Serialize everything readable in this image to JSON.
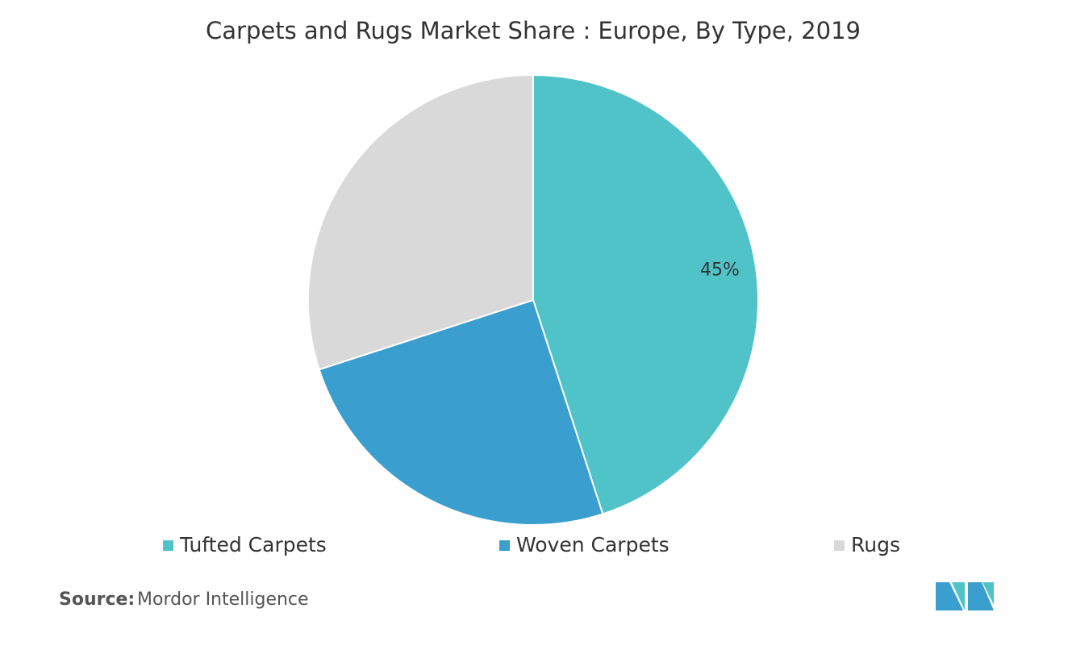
{
  "chart_data": {
    "type": "pie",
    "title": "Carpets and Rugs Market Share : Europe, By Type, 2019",
    "categories": [
      "Tufted Carpets",
      "Woven Carpets",
      "Rugs"
    ],
    "values": [
      45,
      25,
      30
    ],
    "value_labels": [
      "45%",
      null,
      null
    ],
    "colors": [
      "#4fc3c8",
      "#3a9fce",
      "#d9d9d9"
    ],
    "legend": "bottom",
    "source_label": "Source:",
    "source": "Mordor Intelligence"
  }
}
